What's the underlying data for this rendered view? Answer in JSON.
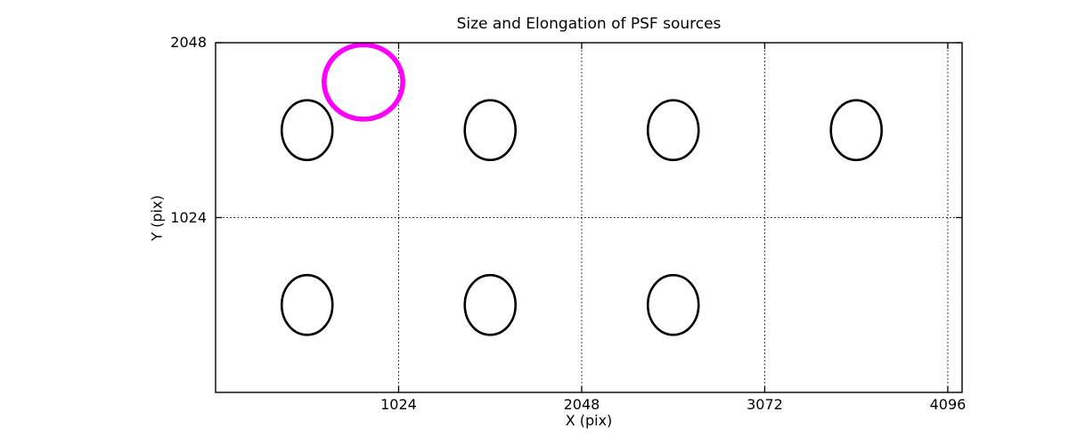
{
  "figure": {
    "background": "#ffffff",
    "axes_color": "#000000",
    "text_color": "#000000"
  },
  "chart_data": {
    "type": "scatter",
    "subtype": "ellipse-map",
    "title": "Size and Elongation of PSF sources",
    "xlabel": "X (pix)",
    "ylabel": "Y (pix)",
    "xlim": [
      0,
      4176
    ],
    "ylim": [
      0,
      2048
    ],
    "x_ticks": [
      1024,
      2048,
      3072,
      4096
    ],
    "y_ticks": [
      1024,
      2048
    ],
    "grid": {
      "style": "dotted",
      "color": "#000000",
      "dash": "1.5,2.6"
    },
    "legend": null,
    "ellipses": [
      {
        "x": 512,
        "y": 1536,
        "rx": 142,
        "ry": 175,
        "stroke": "#000000",
        "stroke_width": 2.6,
        "kind": "psf-ellipse"
      },
      {
        "x": 1536,
        "y": 1536,
        "rx": 142,
        "ry": 175,
        "stroke": "#000000",
        "stroke_width": 2.6,
        "kind": "psf-ellipse"
      },
      {
        "x": 2560,
        "y": 1536,
        "rx": 142,
        "ry": 175,
        "stroke": "#000000",
        "stroke_width": 2.6,
        "kind": "psf-ellipse"
      },
      {
        "x": 3584,
        "y": 1536,
        "rx": 142,
        "ry": 175,
        "stroke": "#000000",
        "stroke_width": 2.6,
        "kind": "psf-ellipse"
      },
      {
        "x": 512,
        "y": 512,
        "rx": 142,
        "ry": 175,
        "stroke": "#000000",
        "stroke_width": 2.6,
        "kind": "psf-ellipse"
      },
      {
        "x": 1536,
        "y": 512,
        "rx": 142,
        "ry": 175,
        "stroke": "#000000",
        "stroke_width": 2.6,
        "kind": "psf-ellipse"
      },
      {
        "x": 2560,
        "y": 512,
        "rx": 142,
        "ry": 175,
        "stroke": "#000000",
        "stroke_width": 2.6,
        "kind": "psf-ellipse"
      },
      {
        "x": 827,
        "y": 1818,
        "rx": 220,
        "ry": 218,
        "stroke": "#ff00ff",
        "stroke_width": 5.6,
        "kind": "reference-circle"
      }
    ]
  }
}
